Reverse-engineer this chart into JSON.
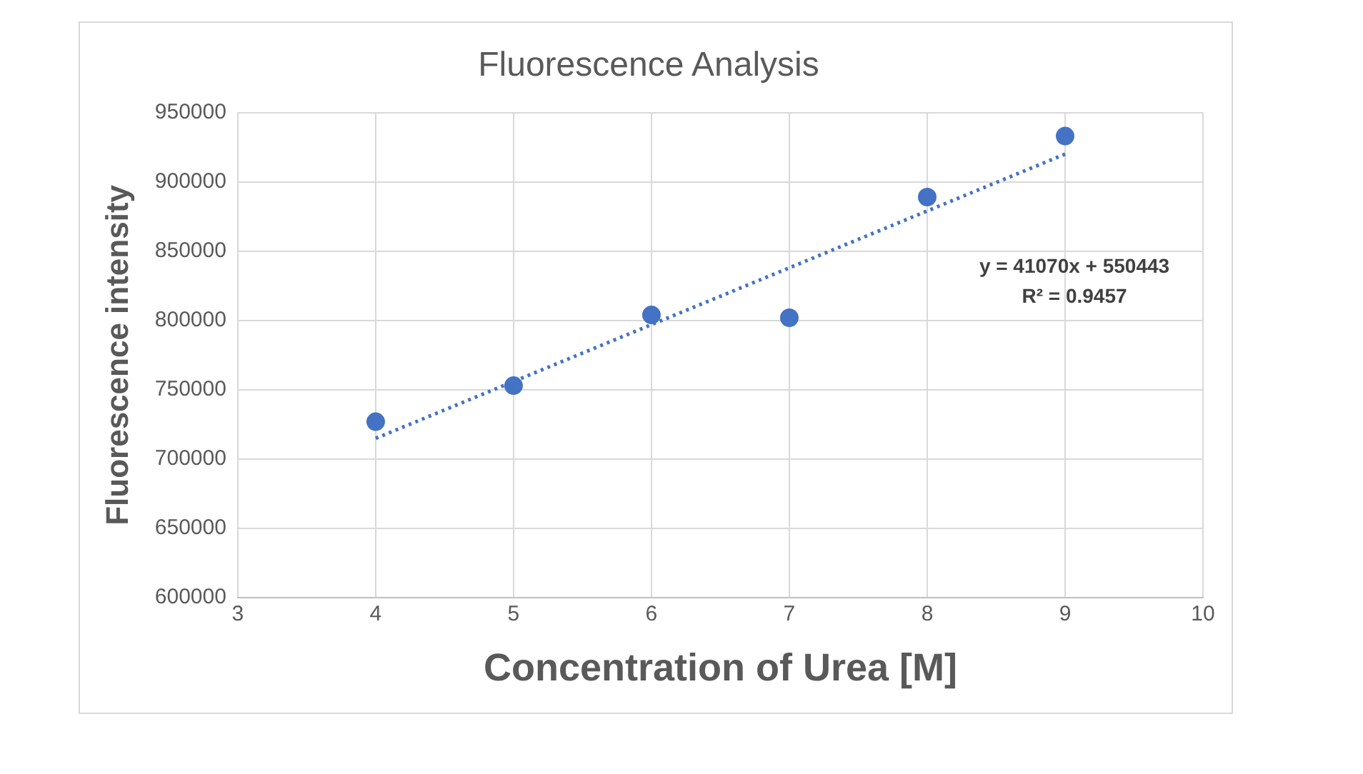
{
  "chart_data": {
    "type": "scatter",
    "title": "Fluorescence Analysis",
    "xlabel": "Concentration of Urea [M]",
    "ylabel": "Fluorescence intensity",
    "x": [
      4,
      5,
      6,
      7,
      8,
      9
    ],
    "series": [
      {
        "type": "scatter",
        "color": "#4472c4",
        "values": [
          727000,
          753000,
          804000,
          802000,
          889000,
          933000
        ],
        "marker": "circle"
      },
      {
        "type": "line",
        "color": "#4472c4",
        "x": [
          4,
          9
        ],
        "values": [
          715000,
          920000
        ],
        "line_style": "dotted",
        "marker": "none"
      }
    ],
    "xlim": [
      3,
      10
    ],
    "xticks": [
      3,
      4,
      5,
      6,
      7,
      8,
      9,
      10
    ],
    "ylim": [
      600000,
      950000
    ],
    "yticks": [
      600000,
      650000,
      700000,
      750000,
      800000,
      850000,
      900000,
      950000
    ],
    "grid": true,
    "legend": false,
    "annotations": [
      "y = 41070x + 550443",
      "R² = 0.9457"
    ]
  }
}
